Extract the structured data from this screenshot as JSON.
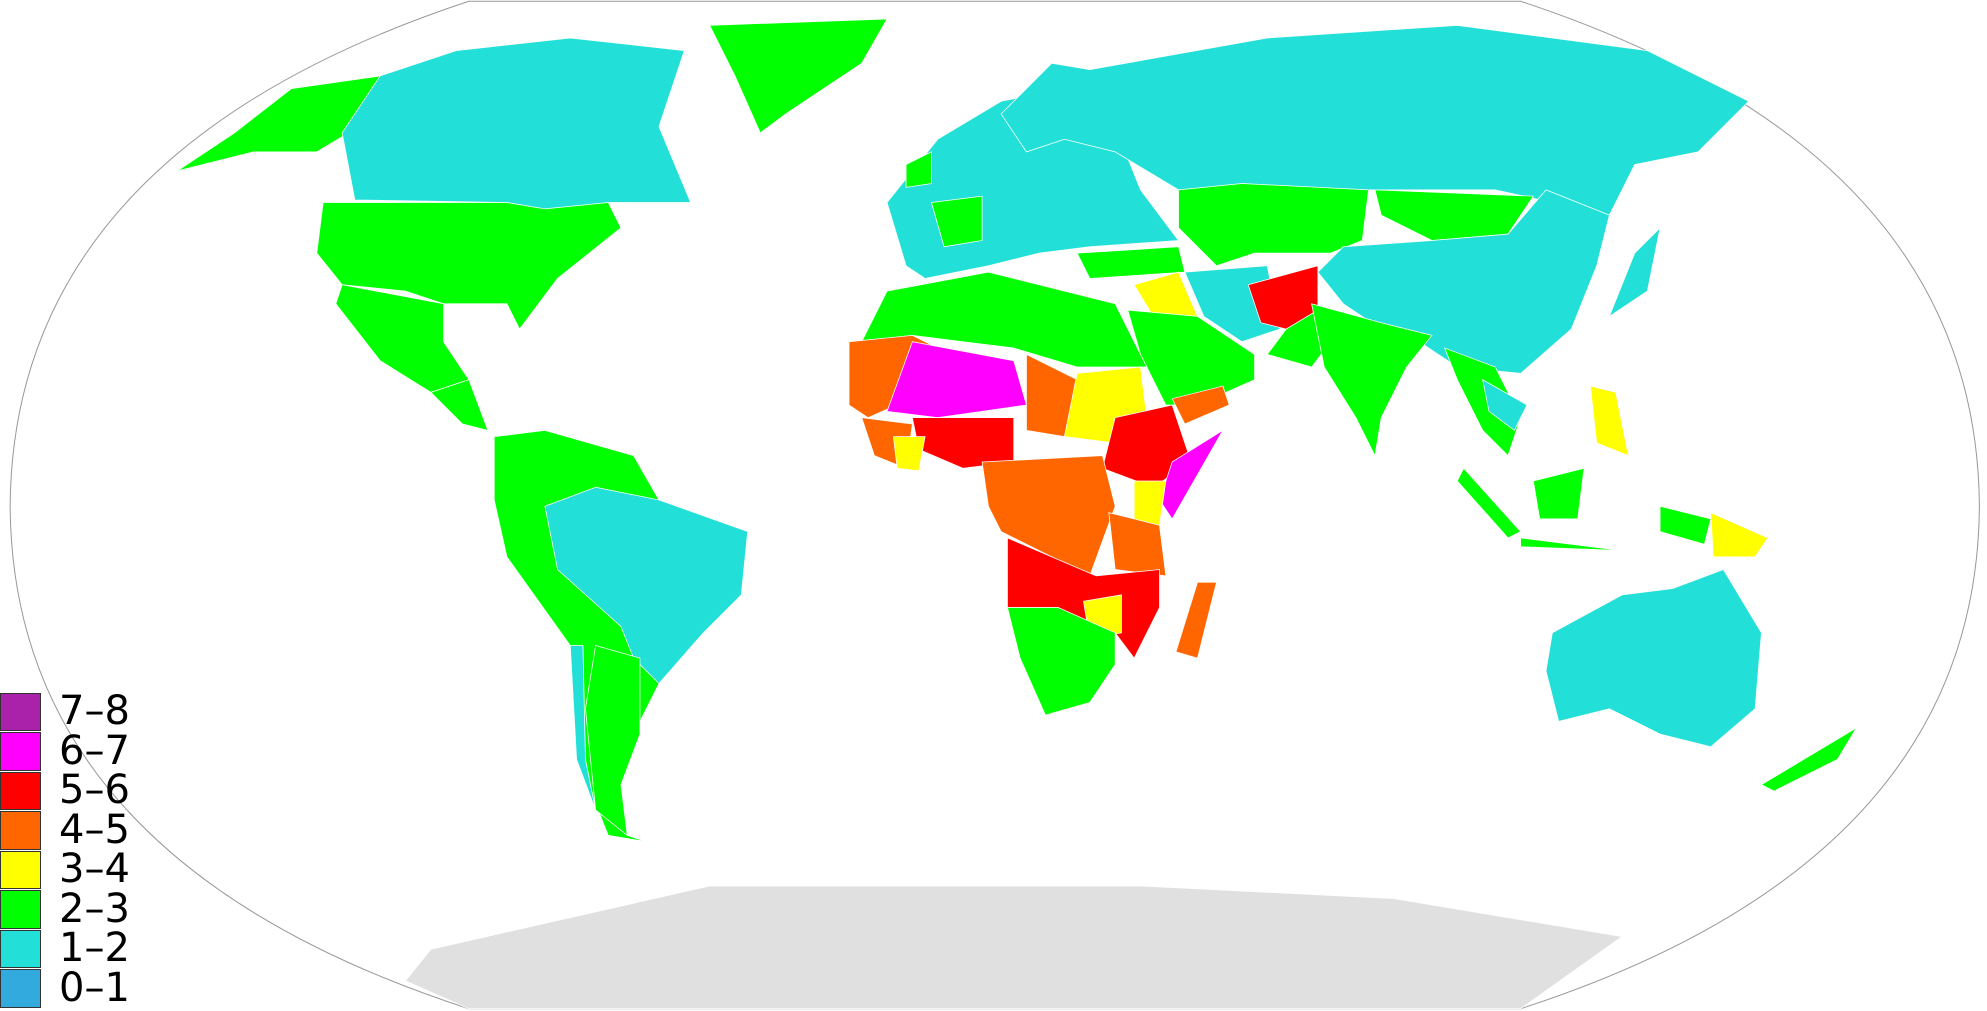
{
  "colors": {
    "ocean": "#ffffff",
    "no_data": "#e0e0e0",
    "border": "#999999"
  },
  "legend": [
    {
      "label": "7–8",
      "color": "#aa22aa"
    },
    {
      "label": "6–7",
      "color": "#ff00ff"
    },
    {
      "label": "5–6",
      "color": "#ff0000"
    },
    {
      "label": "4–5",
      "color": "#ff6600"
    },
    {
      "label": "3–4",
      "color": "#ffff00"
    },
    {
      "label": "2–3",
      "color": "#00ff00"
    },
    {
      "label": "1–2",
      "color": "#22e0d8"
    },
    {
      "label": "0–1",
      "color": "#33aadd"
    }
  ],
  "regions": {
    "alaska": "2–3",
    "canada": "1–2",
    "greenland": "2–3",
    "usa": "2–3",
    "mexico": "2–3",
    "central-america": "2–3",
    "andes": "2–3",
    "brazil": "1–2",
    "argentina": "2–3",
    "chile": "1–2",
    "europe": "1–2",
    "france": "2–3",
    "uk": "2–3",
    "russia": "1–2",
    "central-asia": "2–3",
    "mongolia": "2–3",
    "china": "1–2",
    "japan": "1–2",
    "turkey": "2–3",
    "iraq-syria": "3–4",
    "iran": "1–2",
    "arabia": "2–3",
    "yemen": "4–5",
    "afghanistan": "5–6",
    "pakistan": "2–3",
    "india": "2–3",
    "southeast-asia": "2–3",
    "thailand-vietnam": "1–2",
    "indonesia": "2–3",
    "philippines": "3–4",
    "papua-new-guinea": "3–4",
    "australia": "1–2",
    "new-zealand": "2–3",
    "north-africa": "2–3",
    "west-sahel": "4–5",
    "mali-niger": "6–7",
    "chad": "4–5",
    "sudan": "3–4",
    "nigeria": "5–6",
    "guinea-coast": "4–5",
    "ghana": "3–4",
    "ethiopia": "5–6",
    "somalia": "6–7",
    "central-africa": "4–5",
    "kenya": "3–4",
    "tanzania": "4–5",
    "angola-zambia-mozambique": "5–6",
    "zimbabwe": "3–4",
    "southern-africa": "2–3",
    "madagascar": "4–5"
  }
}
